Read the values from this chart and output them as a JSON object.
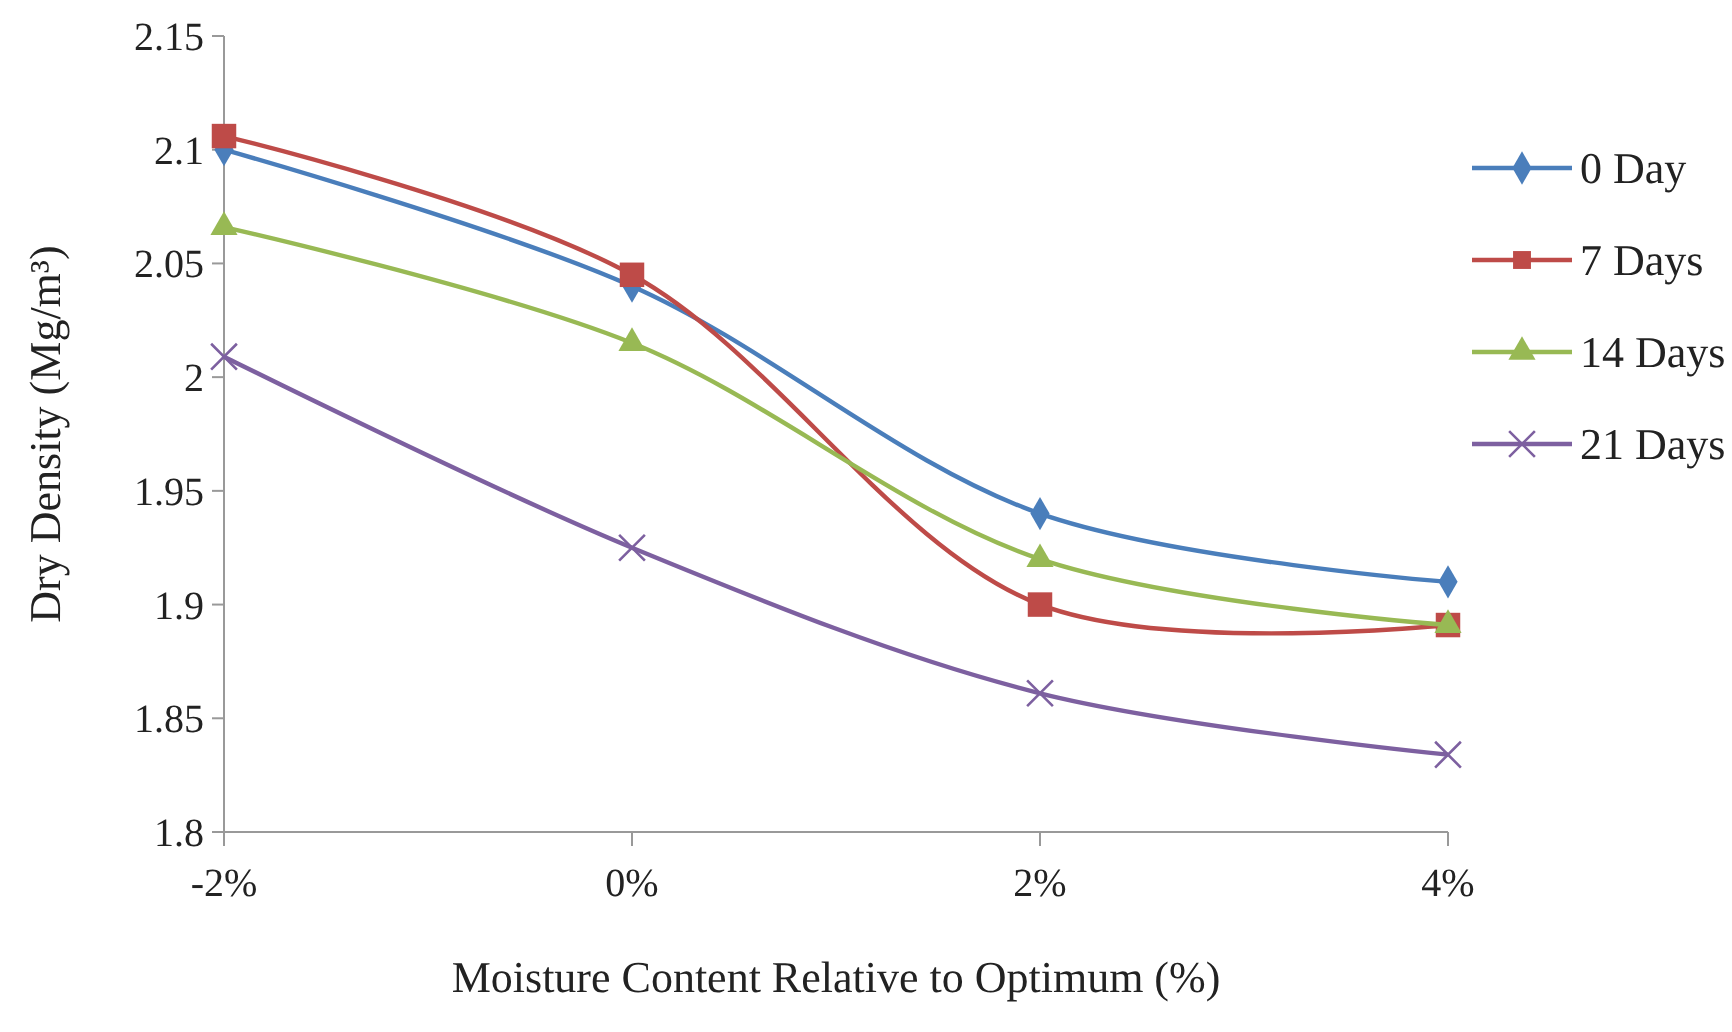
{
  "chart_data": {
    "type": "line",
    "xlabel": "Moisture Content Relative to Optimum (%)",
    "ylabel": "Dry Density (Mg/m³)",
    "categories": [
      "-2%",
      "0%",
      "2%",
      "4%"
    ],
    "series": [
      {
        "name": "0 Day",
        "color": "#4a7ebb",
        "marker": "diamond",
        "values": [
          2.1,
          2.04,
          1.94,
          1.91
        ]
      },
      {
        "name": "7 Days",
        "color": "#be4b48",
        "marker": "square",
        "values": [
          2.106,
          2.045,
          1.9,
          1.891
        ]
      },
      {
        "name": "14 Days",
        "color": "#98b954",
        "marker": "triangle",
        "values": [
          2.066,
          2.015,
          1.92,
          1.891
        ]
      },
      {
        "name": "21 Days",
        "color": "#7d60a0",
        "marker": "cross",
        "values": [
          2.009,
          1.925,
          1.861,
          1.834
        ]
      }
    ],
    "ylim": [
      1.8,
      2.15
    ],
    "yticks": [
      1.8,
      1.85,
      1.9,
      1.95,
      2,
      2.05,
      2.1,
      2.15
    ],
    "legend": "right",
    "grid": false
  }
}
